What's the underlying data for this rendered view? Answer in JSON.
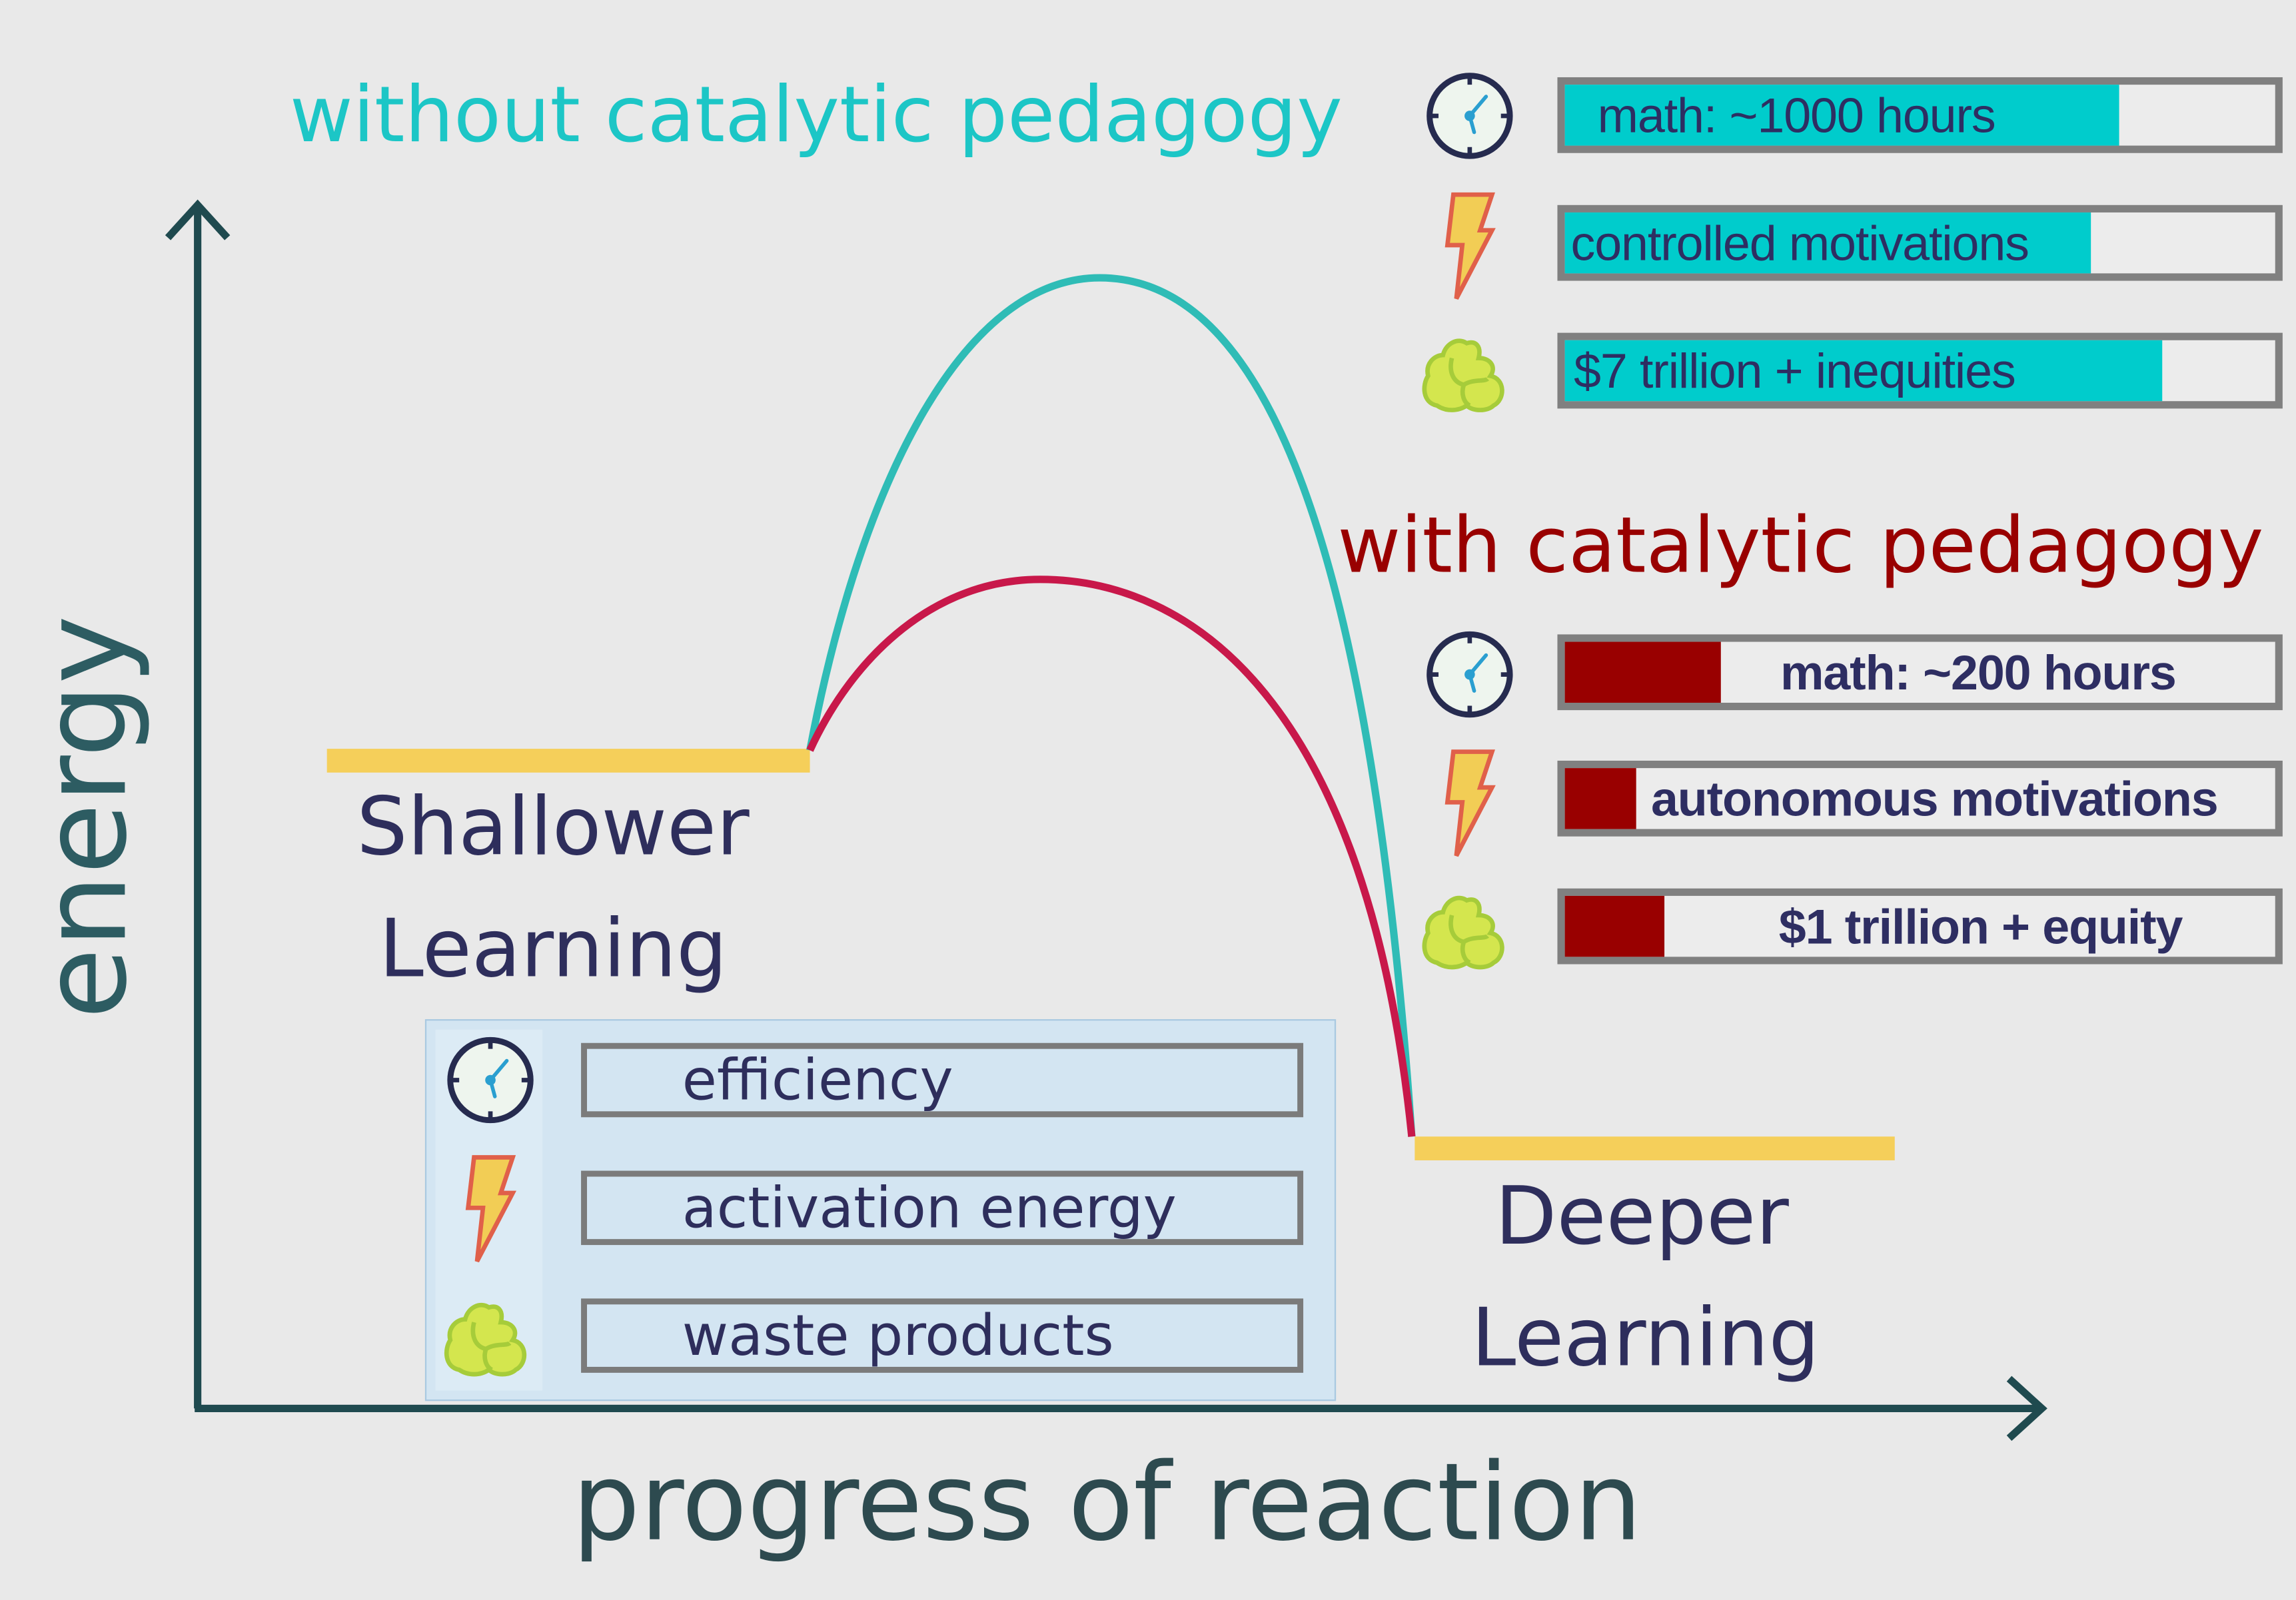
{
  "colors": {
    "cyan": "#00cccc",
    "red": "#990000",
    "title_cyan": "#1cc6c6",
    "title_red": "#990000",
    "level": "#f5cf5a",
    "axis": "#1f4a4f",
    "text": "#2e2e5c"
  },
  "without": {
    "title": "without catalytic pedagogy",
    "bars": [
      {
        "icon": "clock-icon",
        "label": "math: ~1000 hours",
        "fill": 0.78
      },
      {
        "icon": "lightning-icon",
        "label": "controlled motivations",
        "fill": 0.74
      },
      {
        "icon": "waste-cloud-icon",
        "label": "$7 trillion + inequities",
        "fill": 0.84
      }
    ]
  },
  "with": {
    "title": "with catalytic pedagogy",
    "bars": [
      {
        "icon": "clock-icon",
        "label": "math: ~200 hours",
        "fill": 0.22
      },
      {
        "icon": "lightning-icon",
        "label": "autonomous motivations",
        "fill": 0.1
      },
      {
        "icon": "waste-cloud-icon",
        "label": "$1 trillion + equity",
        "fill": 0.14
      }
    ]
  },
  "diagram": {
    "y_axis_label": "energy",
    "x_axis_label": "progress of reaction",
    "start_label": [
      "Shallower",
      "Learning"
    ],
    "end_label": [
      "Deeper",
      "Learning"
    ]
  },
  "legend": {
    "items": [
      {
        "icon": "clock-icon",
        "label": "efficiency"
      },
      {
        "icon": "lightning-icon",
        "label": "activation energy"
      },
      {
        "icon": "waste-cloud-icon",
        "label": "waste products"
      }
    ]
  }
}
